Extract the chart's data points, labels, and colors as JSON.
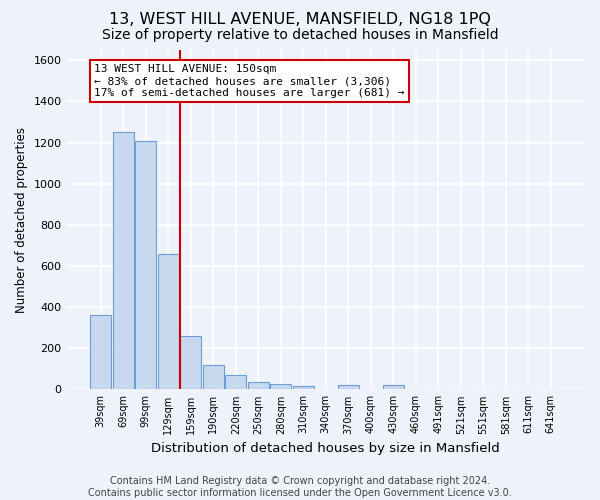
{
  "title": "13, WEST HILL AVENUE, MANSFIELD, NG18 1PQ",
  "subtitle": "Size of property relative to detached houses in Mansfield",
  "xlabel": "Distribution of detached houses by size in Mansfield",
  "ylabel": "Number of detached properties",
  "categories": [
    "39sqm",
    "69sqm",
    "99sqm",
    "129sqm",
    "159sqm",
    "190sqm",
    "220sqm",
    "250sqm",
    "280sqm",
    "310sqm",
    "340sqm",
    "370sqm",
    "400sqm",
    "430sqm",
    "460sqm",
    "491sqm",
    "521sqm",
    "551sqm",
    "581sqm",
    "611sqm",
    "641sqm"
  ],
  "values": [
    360,
    1250,
    1210,
    660,
    260,
    120,
    70,
    35,
    25,
    15,
    0,
    20,
    0,
    20,
    0,
    0,
    0,
    0,
    0,
    0,
    0
  ],
  "bar_color": "#c8d8ef",
  "bar_edgecolor": "#6b9fd4",
  "vline_x": 3.5,
  "vline_color": "#cc0000",
  "annotation_text": "13 WEST HILL AVENUE: 150sqm\n← 83% of detached houses are smaller (3,306)\n17% of semi-detached houses are larger (681) →",
  "annotation_box_color": "#ffffff",
  "annotation_box_edgecolor": "#cc0000",
  "ylim": [
    0,
    1650
  ],
  "yticks": [
    0,
    200,
    400,
    600,
    800,
    1000,
    1200,
    1400,
    1600
  ],
  "footer_text": "Contains HM Land Registry data © Crown copyright and database right 2024.\nContains public sector information licensed under the Open Government Licence v3.0.",
  "background_color": "#eef2fa",
  "grid_color": "#ffffff",
  "title_fontsize": 11.5,
  "subtitle_fontsize": 10,
  "xlabel_fontsize": 9.5,
  "ylabel_fontsize": 8.5,
  "footer_fontsize": 7,
  "annot_fontsize": 8
}
